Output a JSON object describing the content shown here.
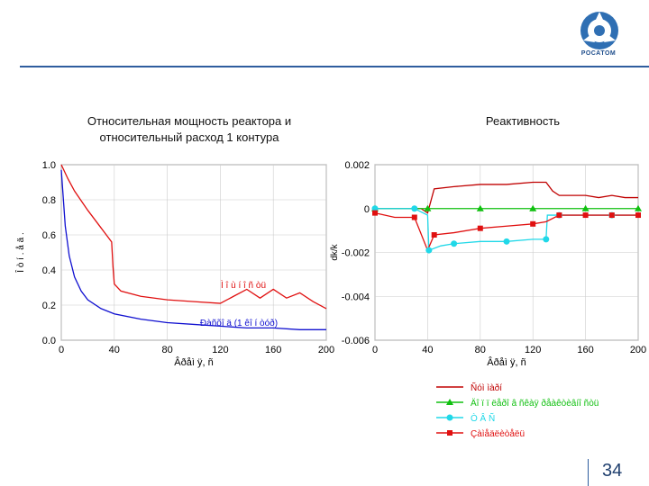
{
  "header": {
    "logo_text": "РОСАТОМ"
  },
  "titles": {
    "left_line1": "Относительная мощность реактора и",
    "left_line2": "относительный расход  1 контура",
    "right": "Реактивность"
  },
  "page_number": "34",
  "colors": {
    "red": "#e01010",
    "blue": "#1010d0",
    "green": "#10c010",
    "cyan": "#20d8e8",
    "dark_red": "#c00000"
  },
  "chart_data": [
    {
      "type": "line",
      "ylabel": "Î ò í . å ä .",
      "xlabel": "Âðåì ÿ, ñ",
      "xlim": [
        0,
        200
      ],
      "ylim": [
        0,
        1.0
      ],
      "x_ticks": [
        "0",
        "40",
        "80",
        "120",
        "160",
        "200"
      ],
      "y_ticks": [
        "0.0",
        "0.2",
        "0.4",
        "0.6",
        "0.8",
        "1.0"
      ],
      "annotations": [
        "Ì î ù í î ñ òü",
        "Ðàñõî ä  (1 êî í òóð)"
      ],
      "series": [
        {
          "color": "red",
          "x": [
            0,
            5,
            10,
            20,
            30,
            38,
            39,
            40,
            45,
            60,
            80,
            100,
            120,
            130,
            140,
            150,
            160,
            170,
            180,
            190,
            200
          ],
          "y": [
            1.0,
            0.92,
            0.85,
            0.74,
            0.64,
            0.56,
            0.42,
            0.32,
            0.28,
            0.25,
            0.23,
            0.22,
            0.21,
            0.25,
            0.29,
            0.24,
            0.29,
            0.24,
            0.27,
            0.22,
            0.18
          ]
        },
        {
          "color": "blue",
          "x": [
            0,
            3,
            6,
            10,
            15,
            20,
            30,
            40,
            60,
            80,
            100,
            120,
            140,
            160,
            180,
            200
          ],
          "y": [
            0.97,
            0.65,
            0.48,
            0.36,
            0.28,
            0.23,
            0.18,
            0.15,
            0.12,
            0.1,
            0.09,
            0.08,
            0.07,
            0.07,
            0.06,
            0.06
          ]
        }
      ]
    },
    {
      "type": "line",
      "ylabel": "dk/k",
      "xlabel": "Âðåì ÿ, ñ",
      "xlim": [
        0,
        200
      ],
      "ylim": [
        -0.006,
        0.002
      ],
      "x_ticks": [
        "0",
        "40",
        "80",
        "120",
        "160",
        "200"
      ],
      "y_ticks": [
        "0.002",
        "0",
        "-0.002",
        "-0.004",
        "-0.006"
      ],
      "legend_position": "bottom",
      "series": [
        {
          "name": "Ñóì ìàðí",
          "color": "dark_red",
          "x": [
            0,
            10,
            20,
            30,
            35,
            40,
            45,
            60,
            80,
            100,
            120,
            130,
            135,
            140,
            150,
            160,
            170,
            180,
            190,
            200
          ],
          "y": [
            0,
            0,
            0,
            0,
            0,
            -0.0002,
            0.0009,
            0.001,
            0.0011,
            0.0011,
            0.0012,
            0.0012,
            0.0008,
            0.0006,
            0.0006,
            0.0006,
            0.0005,
            0.0006,
            0.0005,
            0.0005
          ]
        },
        {
          "name": "Äî ï ï ëåðî â ñêàÿ ðåàêòèâíî ñòü",
          "color": "green",
          "x": [
            0,
            20,
            40,
            60,
            80,
            100,
            120,
            140,
            160,
            180,
            200
          ],
          "y": [
            0,
            0,
            0,
            0,
            0,
            0,
            0,
            0,
            0,
            0,
            0
          ]
        },
        {
          "name": "Ò Â Ñ",
          "color": "cyan",
          "x": [
            0,
            15,
            30,
            40,
            41,
            50,
            60,
            80,
            100,
            120,
            130,
            131,
            140,
            160,
            180,
            200
          ],
          "y": [
            0,
            0,
            0,
            -0.0003,
            -0.0019,
            -0.0017,
            -0.0016,
            -0.0015,
            -0.0015,
            -0.0014,
            -0.0014,
            -0.0003,
            -0.0003,
            -0.0003,
            -0.0003,
            -0.0003
          ]
        },
        {
          "name": "Çàìåäëèòåëü",
          "color": "red",
          "x": [
            0,
            15,
            30,
            40,
            45,
            60,
            80,
            100,
            120,
            130,
            140,
            150,
            160,
            170,
            180,
            190,
            200
          ],
          "y": [
            -0.0002,
            -0.0004,
            -0.0004,
            -0.0019,
            -0.0012,
            -0.0011,
            -0.0009,
            -0.0008,
            -0.0007,
            -0.0006,
            -0.0003,
            -0.0003,
            -0.0003,
            -0.0003,
            -0.0003,
            -0.0003,
            -0.0003
          ]
        }
      ]
    }
  ]
}
